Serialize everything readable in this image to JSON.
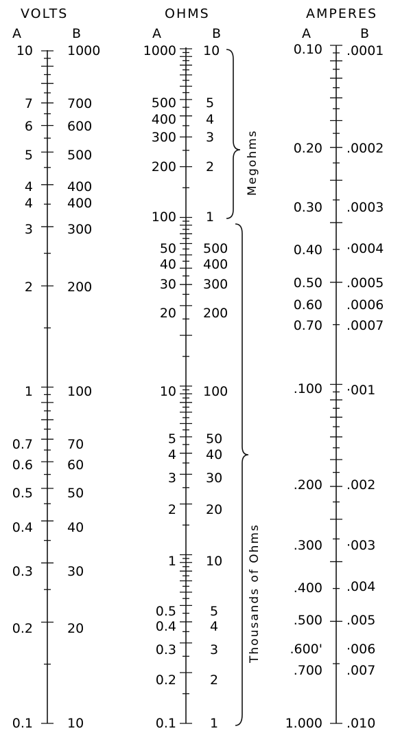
{
  "columns": [
    {
      "key": "volts",
      "title": "VOLTS",
      "sub_a": "A",
      "sub_b": "B",
      "labels": [
        {
          "a": "10",
          "b": "1000"
        },
        {
          "a": "7",
          "b": "700"
        },
        {
          "a": "6",
          "b": "600"
        },
        {
          "a": "5",
          "b": "500"
        },
        {
          "a": "4",
          "b": "400"
        },
        {
          "a": "4",
          "b": "400"
        },
        {
          "a": "3",
          "b": "300"
        },
        {
          "a": "2",
          "b": "200"
        },
        {
          "a": "1",
          "b": "100"
        },
        {
          "a": "0.7",
          "b": "70"
        },
        {
          "a": "0.6",
          "b": "60"
        },
        {
          "a": "0.5",
          "b": "50"
        },
        {
          "a": "0.4",
          "b": "40"
        },
        {
          "a": "0.3",
          "b": "30"
        },
        {
          "a": "0.2",
          "b": "20"
        },
        {
          "a": "0.1",
          "b": "10"
        }
      ]
    },
    {
      "key": "ohms",
      "title": "OHMS",
      "sub_a": "A",
      "sub_b": "B",
      "labels": [
        {
          "a": "1000",
          "b": "10"
        },
        {
          "a": "500",
          "b": "5"
        },
        {
          "a": "400",
          "b": "4"
        },
        {
          "a": "300",
          "b": "3"
        },
        {
          "a": "200",
          "b": "2"
        },
        {
          "a": "100",
          "b": "1"
        },
        {
          "a": "50",
          "b": "500"
        },
        {
          "a": "40",
          "b": "400"
        },
        {
          "a": "30",
          "b": "300"
        },
        {
          "a": "20",
          "b": "200"
        },
        {
          "a": "10",
          "b": "100"
        },
        {
          "a": "5",
          "b": "50"
        },
        {
          "a": "4",
          "b": "40"
        },
        {
          "a": "3",
          "b": "30"
        },
        {
          "a": "2",
          "b": "20"
        },
        {
          "a": "1",
          "b": "10"
        },
        {
          "a": "0.5",
          "b": "5"
        },
        {
          "a": "0.4",
          "b": "4"
        },
        {
          "a": "0.3",
          "b": "3"
        },
        {
          "a": "0.2",
          "b": "2"
        },
        {
          "a": "0.1",
          "b": "1"
        }
      ],
      "brace_upper": "Megohms",
      "brace_lower": "Thousands of Ohms"
    },
    {
      "key": "amperes",
      "title": "AMPERES",
      "sub_a": "A",
      "sub_b": "B",
      "labels": [
        {
          "a": "0.10",
          "b": ".0001"
        },
        {
          "a": "0.20",
          "b": ".0002"
        },
        {
          "a": "0.30",
          "b": ".0003"
        },
        {
          "a": "0.40",
          "b": "·0004"
        },
        {
          "a": "0.50",
          "b": ".0005"
        },
        {
          "a": "0.60",
          "b": ".0006"
        },
        {
          "a": "0.70",
          "b": ".0007"
        },
        {
          "a": ".100",
          "b": "·001"
        },
        {
          "a": ".200",
          "b": ".002"
        },
        {
          "a": ".300",
          "b": "·003"
        },
        {
          "a": ".400",
          "b": ".004"
        },
        {
          "a": ".500",
          "b": ".005"
        },
        {
          "a": ".600'",
          "b": "·006"
        },
        {
          "a": ".700",
          "b": ".007"
        },
        {
          "a": "1.000",
          "b": ".010"
        }
      ]
    }
  ]
}
